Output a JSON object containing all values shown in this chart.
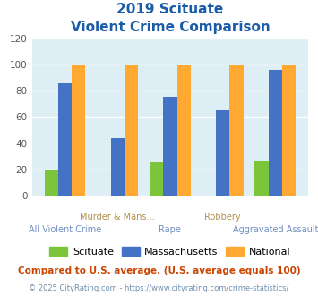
{
  "title_line1": "2019 Scituate",
  "title_line2": "Violent Crime Comparison",
  "categories": [
    "All Violent Crime",
    "Murder & Mans...",
    "Rape",
    "Robbery",
    "Aggravated Assault"
  ],
  "scituate": [
    20,
    0,
    25,
    0,
    26
  ],
  "massachusetts": [
    86,
    44,
    75,
    65,
    96
  ],
  "national": [
    100,
    100,
    100,
    100,
    100
  ],
  "colors": {
    "scituate": "#7cc43a",
    "massachusetts": "#4472c4",
    "national": "#ffa832"
  },
  "ylim": [
    0,
    120
  ],
  "yticks": [
    0,
    20,
    40,
    60,
    80,
    100,
    120
  ],
  "note": "Compared to U.S. average. (U.S. average equals 100)",
  "footer": "© 2025 CityRating.com - https://www.cityrating.com/crime-statistics/",
  "bg_color": "#ddeef5",
  "title_color": "#1a5ca8",
  "xlabel_color_top": "#b09050",
  "xlabel_color_bottom": "#7090c0",
  "note_color": "#cc4400",
  "footer_color": "#7090b0"
}
